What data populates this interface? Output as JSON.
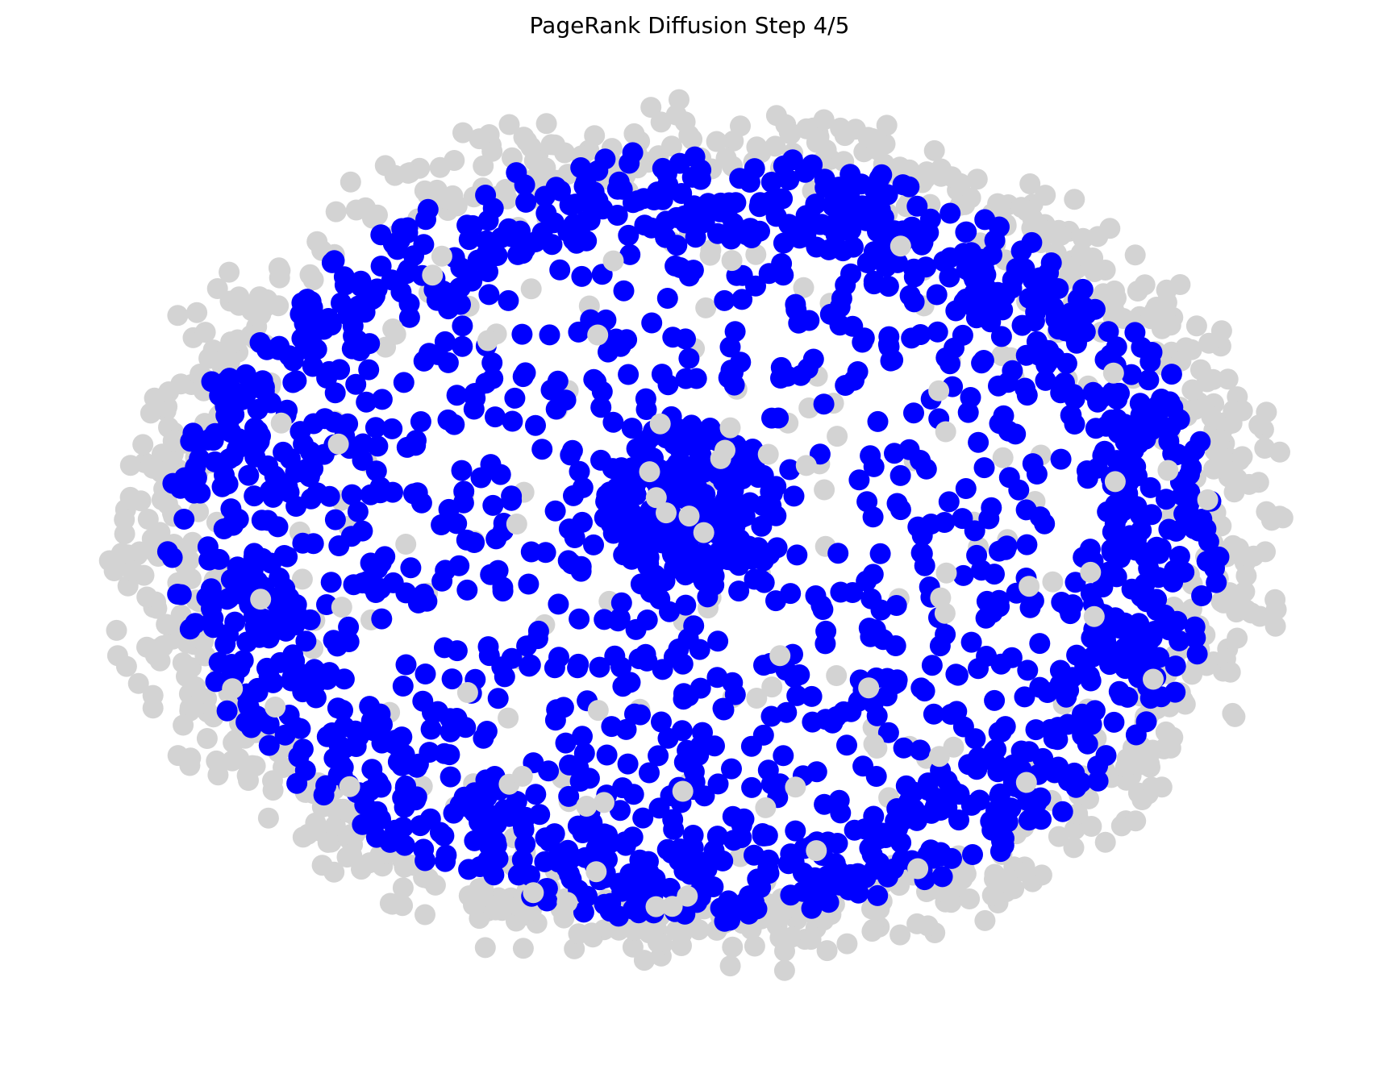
{
  "chart_data": {
    "type": "scatter",
    "title": "PageRank Diffusion Step 4/5",
    "xlabel": "",
    "ylabel": "",
    "axes_visible": false,
    "grid": false,
    "legend": "none",
    "step": 4,
    "total_steps": 5,
    "layout": "spring graph layout, roughly circular cloud of nodes",
    "series": [
      {
        "state": "active",
        "color": "#0000ff",
        "approx_count": 1900,
        "region": "interior"
      },
      {
        "state": "inactive",
        "color": "#d3d3d3",
        "approx_count": 900,
        "region": "outer ring and scattered interior"
      }
    ],
    "colors": {
      "active": "#0000ff",
      "inactive": "#d3d3d3",
      "background": "#ffffff"
    }
  }
}
